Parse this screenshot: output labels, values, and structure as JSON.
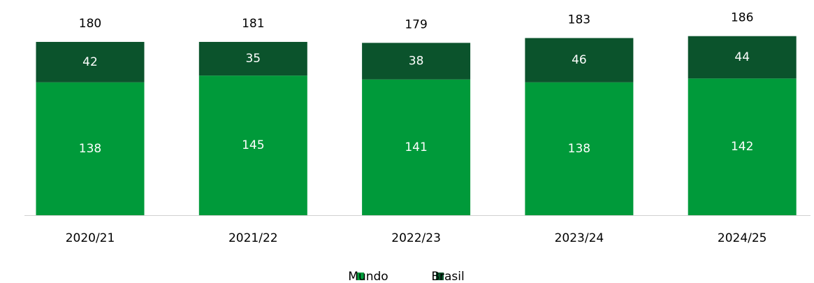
{
  "chart_data": {
    "type": "stacked_bar",
    "categories": [
      "2020/21",
      "2021/22",
      "2022/23",
      "2023/24",
      "2024/25"
    ],
    "series": [
      {
        "name": "Mundo",
        "color": "#009a3a",
        "values": [
          138,
          145,
          141,
          138,
          142
        ]
      },
      {
        "name": "Brasil",
        "color": "#0b532c",
        "values": [
          42,
          35,
          38,
          46,
          44
        ]
      }
    ],
    "totals": [
      180,
      181,
      179,
      183,
      186
    ],
    "legend": "bottom"
  }
}
